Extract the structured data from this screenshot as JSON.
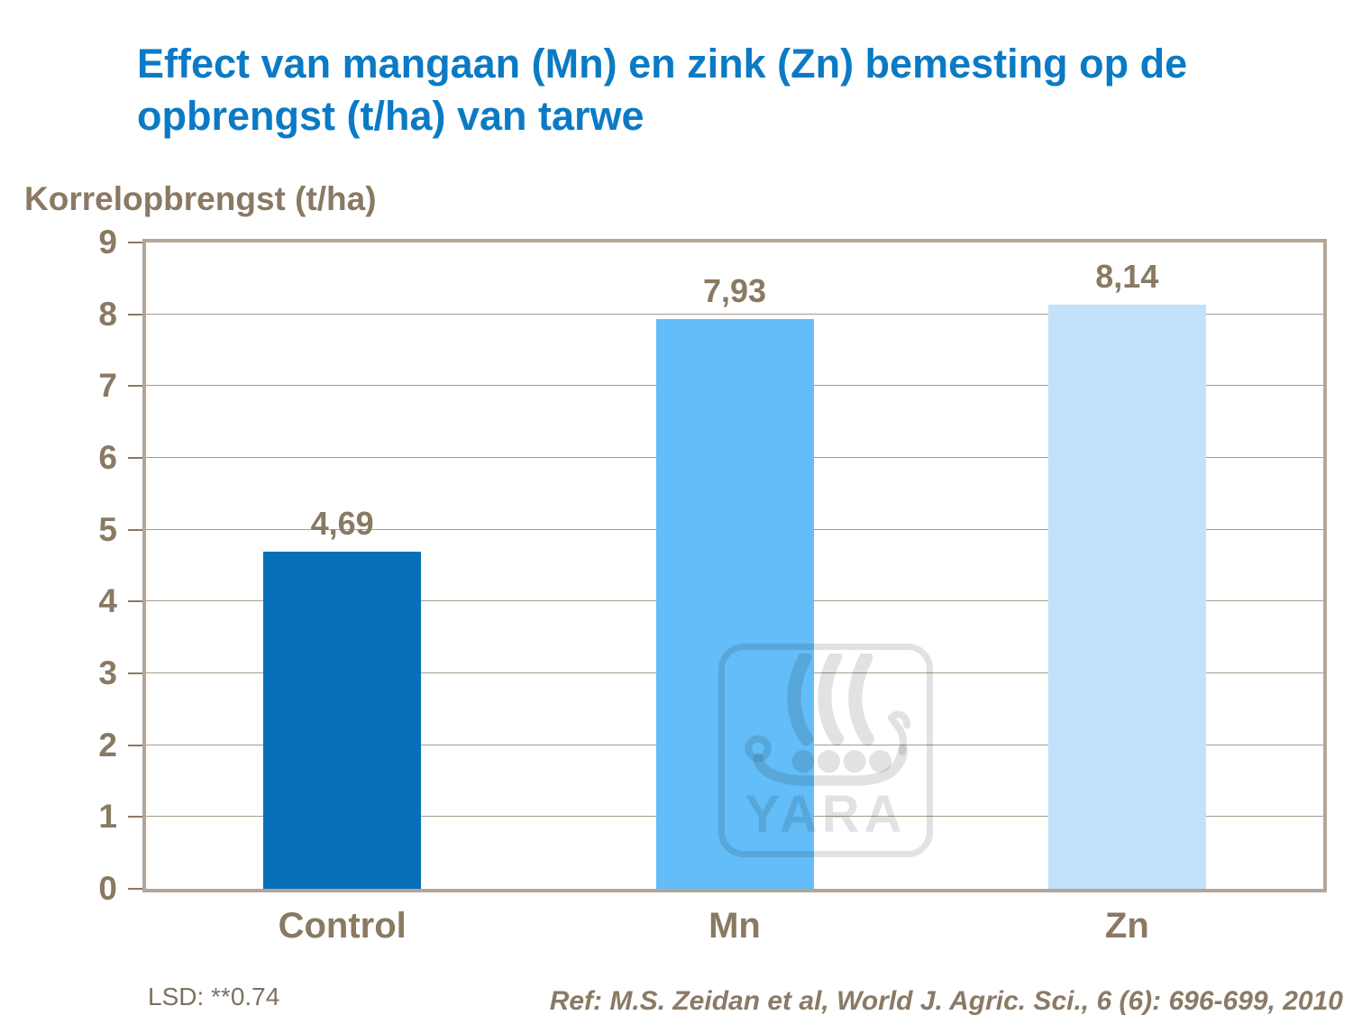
{
  "title": {
    "line1": "Effect van mangaan (Mn) en zink (Zn) bemesting op de",
    "line2": "opbrengst (t/ha) van tarwe"
  },
  "y_axis": {
    "title": "Korrelopbrengst (t/ha)"
  },
  "chart_data": {
    "type": "bar",
    "title": "Effect van mangaan (Mn) en zink (Zn) bemesting op de opbrengst (t/ha) van tarwe",
    "ylabel": "Korrelopbrengst (t/ha)",
    "categories": [
      "Control",
      "Mn",
      "Zn"
    ],
    "values": [
      4.69,
      7.93,
      8.14
    ],
    "value_labels": [
      "4,69",
      "7,93",
      "8,14"
    ],
    "bar_colors": [
      "#0570b8",
      "#63bdf8",
      "#c2e1fb"
    ],
    "ylim": [
      0,
      9
    ],
    "y_ticks": [
      0,
      1,
      2,
      3,
      4,
      5,
      6,
      7,
      8,
      9
    ],
    "grid": "horizontal",
    "legend": "none"
  },
  "watermark": {
    "text": "YARA",
    "icon": "viking-ship-icon"
  },
  "footer": {
    "lsd": "LSD: **0.74",
    "ref": "Ref: M.S. Zeidan et al, World J. Agric. Sci., 6 (6): 696-699, 2010"
  },
  "colors": {
    "title_blue": "#0b7ac5",
    "text_brown": "#8a7963",
    "frame": "#b3a698",
    "gridline": "#a89b87"
  }
}
